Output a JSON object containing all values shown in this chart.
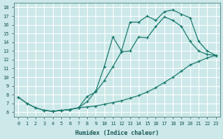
{
  "xlabel": "Humidex (Indice chaleur)",
  "bg_color": "#cce8e8",
  "grid_color": "#ffffff",
  "line_color": "#1a7a6e",
  "xlim": [
    -0.5,
    23.5
  ],
  "ylim": [
    5.5,
    18.5
  ],
  "xticks": [
    0,
    1,
    2,
    3,
    4,
    5,
    6,
    7,
    8,
    9,
    10,
    11,
    12,
    13,
    14,
    15,
    16,
    17,
    18,
    19,
    20,
    21,
    22,
    23
  ],
  "yticks": [
    6,
    7,
    8,
    9,
    10,
    11,
    12,
    13,
    14,
    15,
    16,
    17,
    18
  ],
  "curve_upper_x": [
    0,
    1,
    2,
    3,
    4,
    5,
    6,
    7,
    8,
    9,
    10,
    11,
    12,
    13,
    14,
    15,
    16,
    17,
    18,
    19,
    20,
    21,
    22,
    23
  ],
  "curve_upper_y": [
    7.7,
    7.0,
    6.5,
    6.2,
    6.1,
    6.2,
    6.3,
    6.5,
    7.2,
    8.4,
    11.2,
    14.6,
    13.0,
    16.3,
    16.3,
    17.0,
    16.5,
    17.5,
    17.7,
    17.2,
    16.8,
    14.1,
    13.0,
    12.5
  ],
  "curve_lower_x": [
    0,
    1,
    2,
    3,
    4,
    5,
    6,
    7,
    8,
    9,
    10,
    11,
    12,
    13,
    14,
    15,
    16,
    17,
    18,
    19,
    20,
    21,
    22,
    23
  ],
  "curve_lower_y": [
    7.7,
    7.0,
    6.5,
    6.2,
    6.1,
    6.2,
    6.3,
    6.5,
    6.6,
    6.7,
    6.9,
    7.1,
    7.3,
    7.6,
    7.9,
    8.3,
    8.8,
    9.4,
    10.0,
    10.7,
    11.4,
    11.8,
    12.2,
    12.5
  ],
  "curve_mid_x": [
    3,
    4,
    5,
    6,
    7,
    8,
    9,
    10,
    11,
    12,
    13,
    14,
    15,
    16,
    17,
    18,
    19,
    20,
    21,
    22,
    23
  ],
  "curve_mid_y": [
    6.2,
    6.1,
    6.2,
    6.3,
    6.5,
    7.8,
    8.3,
    9.6,
    11.2,
    12.9,
    13.0,
    14.6,
    14.5,
    15.8,
    16.9,
    16.5,
    15.8,
    14.1,
    13.0,
    12.6,
    12.5
  ]
}
